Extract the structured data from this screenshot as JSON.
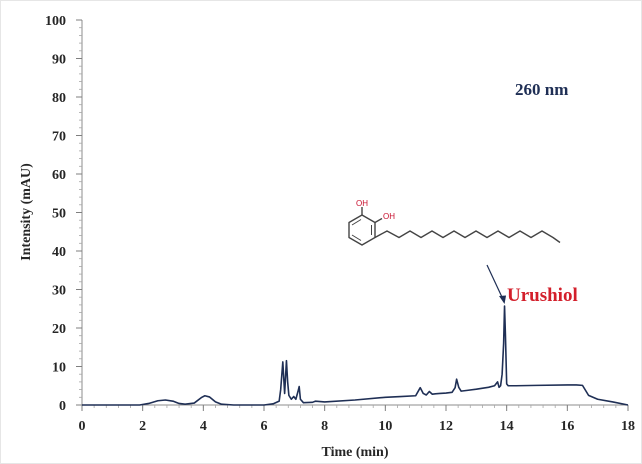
{
  "chart_data": {
    "type": "line",
    "xlabel": "Time (min)",
    "ylabel": "Intensity (mAU)",
    "xlim": [
      0,
      18
    ],
    "ylim": [
      0,
      100
    ],
    "x_ticks": [
      "0",
      "2",
      "4",
      "6",
      "8",
      "10",
      "12",
      "14",
      "16",
      "18"
    ],
    "y_ticks": [
      "0",
      "10",
      "20",
      "30",
      "40",
      "50",
      "60",
      "70",
      "80",
      "90",
      "100"
    ],
    "grid": false,
    "line_color": "#1f2f55",
    "series": [
      {
        "x": [
          0,
          1.9,
          2.2,
          2.5,
          2.75,
          3.0,
          3.2,
          3.4,
          3.7,
          3.95,
          4.05,
          4.2,
          4.4,
          4.6,
          5.0,
          6.0,
          6.3,
          6.5,
          6.55,
          6.62,
          6.68,
          6.74,
          6.78,
          6.82,
          6.9,
          6.98,
          7.05,
          7.12,
          7.16,
          7.2,
          7.3,
          7.6,
          7.7,
          8.0,
          9.0,
          10.0,
          10.5,
          11.0,
          11.15,
          11.25,
          11.35,
          11.45,
          11.55,
          11.65,
          11.8,
          12.0,
          12.2,
          12.3,
          12.35,
          12.42,
          12.5,
          12.7,
          13.0,
          13.4,
          13.6,
          13.7,
          13.75,
          13.8,
          13.85,
          13.9,
          13.93,
          13.96,
          14.0,
          14.05,
          14.1,
          14.3,
          15.0,
          16.0,
          16.3,
          16.5,
          16.7,
          17.0,
          17.5,
          18.0
        ],
        "y": [
          0,
          0,
          0.4,
          1.1,
          1.3,
          1.0,
          0.4,
          0.2,
          0.5,
          2.0,
          2.4,
          2.1,
          0.8,
          0.2,
          0,
          0,
          0.3,
          1.0,
          4.0,
          11.2,
          3.0,
          11.5,
          6.0,
          2.5,
          1.5,
          2.2,
          1.5,
          3.5,
          4.8,
          1.5,
          0.6,
          0.7,
          1.0,
          0.8,
          1.3,
          2.0,
          2.2,
          2.4,
          4.5,
          3.0,
          2.6,
          3.5,
          2.8,
          2.9,
          3.0,
          3.1,
          3.3,
          4.5,
          6.7,
          4.6,
          3.6,
          3.8,
          4.1,
          4.6,
          5.0,
          6.0,
          4.6,
          5.0,
          8.0,
          16.0,
          25.7,
          18.0,
          5.5,
          5.0,
          5.0,
          5.0,
          5.1,
          5.2,
          5.2,
          5.1,
          2.5,
          1.5,
          0.8,
          0
        ]
      }
    ],
    "annotations": {
      "wavelength": {
        "text": "260 nm",
        "color": "#1f2f55"
      },
      "peak": {
        "text": "Urushiol",
        "color": "#d31f2b",
        "arrow_to_x": 13.93,
        "arrow_to_y": 25.7
      }
    },
    "structure_atoms": [
      "OH",
      "OH"
    ]
  }
}
